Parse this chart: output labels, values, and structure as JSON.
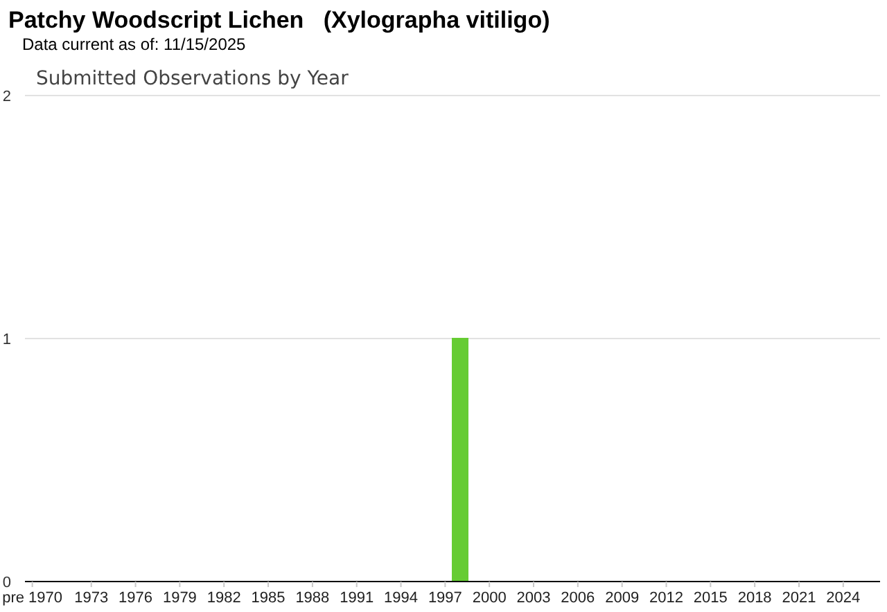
{
  "chart_data": {
    "type": "bar",
    "title": "Patchy Woodscript Lichen   (Xylographa vitiligo)",
    "subtitle": "Submitted Observations by Year",
    "annotations": [
      "Data current as of: 11/15/2025"
    ],
    "categories": [
      "pre 1970",
      null,
      null,
      null,
      "1973",
      null,
      null,
      "1976",
      null,
      null,
      "1979",
      null,
      null,
      "1982",
      null,
      null,
      "1985",
      null,
      null,
      "1988",
      null,
      null,
      "1991",
      null,
      null,
      "1994",
      null,
      null,
      "1997",
      null,
      null,
      "2000",
      null,
      null,
      "2003",
      null,
      null,
      "2006",
      null,
      null,
      "2009",
      null,
      null,
      "2012",
      null,
      null,
      "2015",
      null,
      null,
      "2018",
      null,
      null,
      "2021",
      null,
      null,
      "2024",
      null,
      null
    ],
    "values": [
      0,
      0,
      0,
      0,
      0,
      0,
      0,
      0,
      0,
      0,
      0,
      0,
      0,
      0,
      0,
      0,
      0,
      0,
      0,
      0,
      0,
      0,
      0,
      0,
      0,
      0,
      0,
      0,
      0,
      1,
      0,
      0,
      0,
      0,
      0,
      0,
      0,
      0,
      0,
      0,
      0,
      0,
      0,
      0,
      0,
      0,
      0,
      0,
      0,
      0,
      0,
      0,
      0,
      0,
      0,
      0,
      0,
      0
    ],
    "color": "#66cc33",
    "ylim": [
      0,
      2
    ],
    "yticks": [
      0,
      1,
      2
    ],
    "grid": "y"
  }
}
